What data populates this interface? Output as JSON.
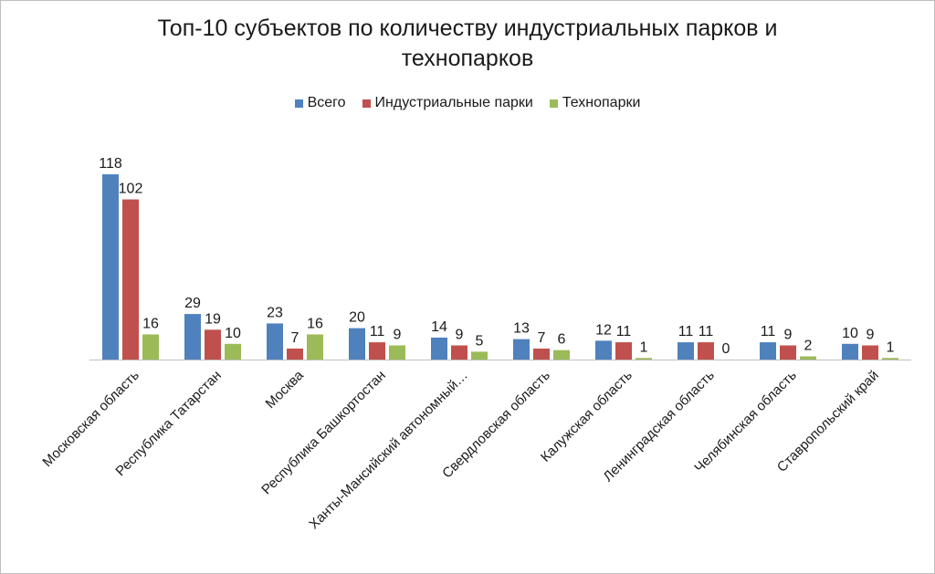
{
  "chart_data": {
    "type": "bar",
    "title_line1": "Топ-10 субъектов по количеству индустриальных парков и",
    "title_line2": "технопарков",
    "categories": [
      "Московская область",
      "Республика Татарстан",
      "Москва",
      "Республика Башкортостан",
      "Ханты-Мансийский автономный…",
      "Свердловская область",
      "Калужская область",
      "Ленинградская область",
      "Челябинская область",
      "Ставропольский край"
    ],
    "series": [
      {
        "name": "Всего",
        "color": "#4F81BD",
        "values": [
          118,
          29,
          23,
          20,
          14,
          13,
          12,
          11,
          11,
          10
        ]
      },
      {
        "name": "Индустриальные парки",
        "color": "#C0504D",
        "values": [
          102,
          19,
          7,
          11,
          9,
          7,
          11,
          11,
          9,
          9
        ]
      },
      {
        "name": "Технопарки",
        "color": "#9BBB59",
        "values": [
          16,
          10,
          16,
          9,
          5,
          6,
          1,
          0,
          2,
          1
        ]
      }
    ],
    "ylim": [
      0,
      118
    ],
    "legend_position": "top-center",
    "xlabel": "",
    "ylabel": ""
  }
}
